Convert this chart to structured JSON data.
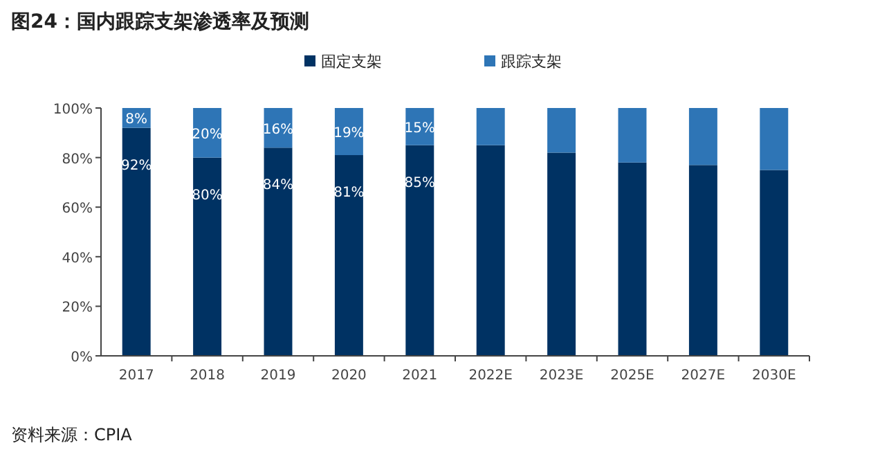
{
  "chart_data": {
    "type": "bar",
    "title": "图24：国内跟踪支架渗透率及预测",
    "stacked": true,
    "categories": [
      "2017",
      "2018",
      "2019",
      "2020",
      "2021",
      "2022E",
      "2023E",
      "2025E",
      "2027E",
      "2030E"
    ],
    "series": [
      {
        "name": "固定支架",
        "color": "#003263",
        "values": [
          92,
          80,
          84,
          81,
          85,
          85,
          82,
          78,
          77,
          75
        ],
        "value_labels": [
          "92%",
          "80%",
          "84%",
          "81%",
          "85%",
          null,
          null,
          null,
          null,
          null
        ]
      },
      {
        "name": "跟踪支架",
        "color": "#2e75b6",
        "values": [
          8,
          20,
          16,
          19,
          15,
          15,
          18,
          22,
          23,
          25
        ],
        "value_labels": [
          "8%",
          "20%",
          "16%",
          "19%",
          "15%",
          null,
          null,
          null,
          null,
          null
        ]
      }
    ],
    "ylim": [
      0,
      100
    ],
    "yticks": [
      {
        "value": 0,
        "label": "0%"
      },
      {
        "value": 20,
        "label": "20%"
      },
      {
        "value": 40,
        "label": "40%"
      },
      {
        "value": 60,
        "label": "60%"
      },
      {
        "value": 80,
        "label": "80%"
      },
      {
        "value": 100,
        "label": "100%"
      }
    ],
    "grid": false,
    "legend": "top",
    "annotations": [
      "资料来源：CPIA"
    ]
  }
}
